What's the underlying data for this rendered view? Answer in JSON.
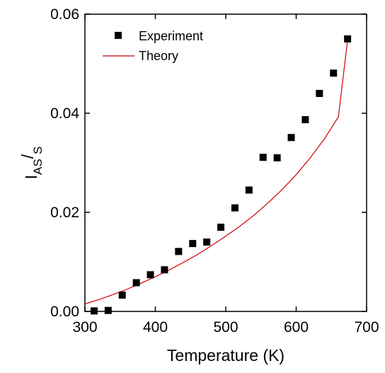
{
  "chart_data": {
    "type": "scatter",
    "xlabel": "Temperature (K)",
    "ylabel_parts": {
      "main": "I",
      "sub1": "AS",
      "slash": "/",
      "sub2": "S"
    },
    "xlim": [
      300,
      700
    ],
    "ylim": [
      0.0,
      0.06
    ],
    "x_ticks": [
      300,
      400,
      500,
      600,
      700
    ],
    "x_tick_labels": [
      "300",
      "400",
      "500",
      "600",
      "700"
    ],
    "y_ticks": [
      0.0,
      0.02,
      0.04,
      0.06
    ],
    "y_tick_labels": [
      "0.00",
      "0.02",
      "0.04",
      "0.06"
    ],
    "grid": false,
    "legend_position": "top-left",
    "series": [
      {
        "name": "Experiment",
        "kind": "scatter",
        "marker": "square",
        "color": "#000000",
        "x": [
          313,
          333,
          353,
          373,
          393,
          413,
          433,
          453,
          473,
          493,
          513,
          533,
          553,
          573,
          593,
          613,
          633,
          653,
          673
        ],
        "y": [
          0.0001,
          0.0002,
          0.0033,
          0.0058,
          0.0074,
          0.0084,
          0.0121,
          0.0137,
          0.014,
          0.017,
          0.0209,
          0.0245,
          0.0311,
          0.031,
          0.0351,
          0.0387,
          0.044,
          0.0481,
          0.055
        ]
      },
      {
        "name": "Theory",
        "kind": "line",
        "color": "#cc0000",
        "x": [
          300,
          320,
          340,
          360,
          380,
          400,
          420,
          440,
          460,
          480,
          500,
          520,
          540,
          560,
          580,
          600,
          620,
          640,
          660,
          673
        ],
        "y": [
          0.0015,
          0.0024,
          0.0034,
          0.0045,
          0.0057,
          0.007,
          0.0084,
          0.0099,
          0.0115,
          0.0133,
          0.0152,
          0.0172,
          0.0194,
          0.0219,
          0.0246,
          0.0276,
          0.031,
          0.0348,
          0.0393,
          0.0548
        ]
      }
    ]
  }
}
